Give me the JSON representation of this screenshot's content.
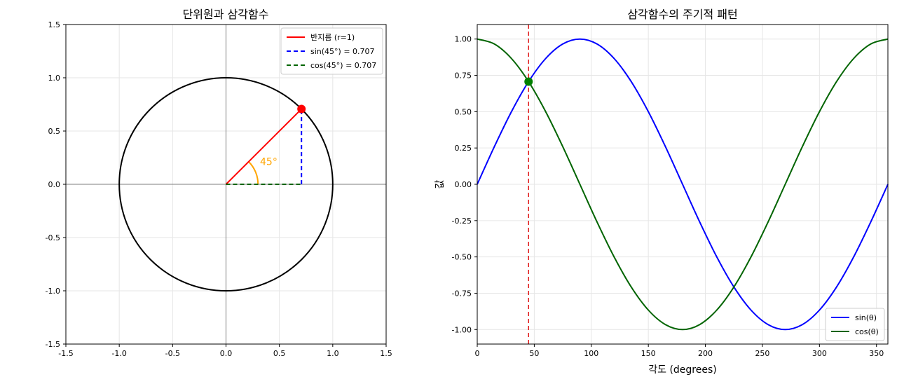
{
  "chart_data": [
    {
      "type": "line",
      "title": "단위원과 삼각함수",
      "xlim": [
        -1.5,
        1.5
      ],
      "ylim": [
        -1.5,
        1.5
      ],
      "xticks": [
        -1.5,
        -1.0,
        -0.5,
        0.0,
        0.5,
        1.0,
        1.5
      ],
      "xtick_labels": [
        "-1.5",
        "-1.0",
        "-0.5",
        "0.0",
        "0.5",
        "1.0",
        "1.5"
      ],
      "yticks": [
        -1.5,
        -1.0,
        -0.5,
        0.0,
        0.5,
        1.0,
        1.5
      ],
      "ytick_labels": [
        "-1.5",
        "-1.0",
        "-0.5",
        "0.0",
        "0.5",
        "1.0",
        "1.5"
      ],
      "grid": true,
      "legend_position": "top-right",
      "unit_circle": {
        "center": [
          0,
          0
        ],
        "radius": 1,
        "color": "#000000"
      },
      "point": {
        "x": 0.707,
        "y": 0.707,
        "color": "#ff0000"
      },
      "series": [
        {
          "name": "반지름 (r=1)",
          "x": [
            0,
            0.707
          ],
          "y": [
            0,
            0.707
          ],
          "color": "#ff0000",
          "style": "solid"
        },
        {
          "name": "sin(45°) = 0.707",
          "x": [
            0.707,
            0.707
          ],
          "y": [
            0,
            0.707
          ],
          "color": "#0000ff",
          "style": "dashed"
        },
        {
          "name": "cos(45°) = 0.707",
          "x": [
            0,
            0.707
          ],
          "y": [
            0,
            0
          ],
          "color": "#006400",
          "style": "dashed"
        }
      ],
      "angle_arc": {
        "radius": 0.3,
        "degrees": 45,
        "color": "#ffa500"
      },
      "annotation": {
        "text": "45°",
        "x": 0.4,
        "y": 0.18,
        "color": "#ffa500"
      }
    },
    {
      "type": "line",
      "title": "삼각함수의 주기적 패턴",
      "xlabel": "각도 (degrees)",
      "ylabel": "값",
      "xlim": [
        0,
        360
      ],
      "ylim": [
        -1.1,
        1.1
      ],
      "xticks": [
        0,
        50,
        100,
        150,
        200,
        250,
        300,
        350
      ],
      "xtick_labels": [
        "0",
        "50",
        "100",
        "150",
        "200",
        "250",
        "300",
        "350"
      ],
      "yticks": [
        1.0,
        0.75,
        0.5,
        0.25,
        0.0,
        -0.25,
        -0.5,
        -0.75,
        -1.0
      ],
      "ytick_labels": [
        "1.00",
        "0.75",
        "0.50",
        "0.25",
        "0.00",
        "-0.25",
        "-0.50",
        "-0.75",
        "-1.00"
      ],
      "grid": true,
      "legend_position": "bottom-right",
      "x": [
        0,
        15,
        30,
        45,
        60,
        75,
        90,
        105,
        120,
        135,
        150,
        165,
        180,
        195,
        210,
        225,
        240,
        255,
        270,
        285,
        300,
        315,
        330,
        345,
        360
      ],
      "series": [
        {
          "name": "sin(θ)",
          "color": "#0000ff",
          "values": [
            0,
            0.259,
            0.5,
            0.707,
            0.866,
            0.966,
            1,
            0.966,
            0.866,
            0.707,
            0.5,
            0.259,
            0,
            -0.259,
            -0.5,
            -0.707,
            -0.866,
            -0.966,
            -1,
            -0.966,
            -0.866,
            -0.707,
            -0.5,
            -0.259,
            0
          ]
        },
        {
          "name": "cos(θ)",
          "color": "#006400",
          "values": [
            1,
            0.966,
            0.866,
            0.707,
            0.5,
            0.259,
            0,
            -0.259,
            -0.5,
            -0.707,
            -0.866,
            -0.966,
            -1,
            -0.966,
            -0.866,
            -0.707,
            -0.5,
            -0.259,
            0,
            0.259,
            0.5,
            0.707,
            0.866,
            0.966,
            1
          ]
        }
      ],
      "vline": {
        "x": 45,
        "color": "#dd0000",
        "style": "dashed"
      },
      "marker": {
        "x": 45,
        "y": 0.707,
        "color": "#008000"
      }
    }
  ]
}
